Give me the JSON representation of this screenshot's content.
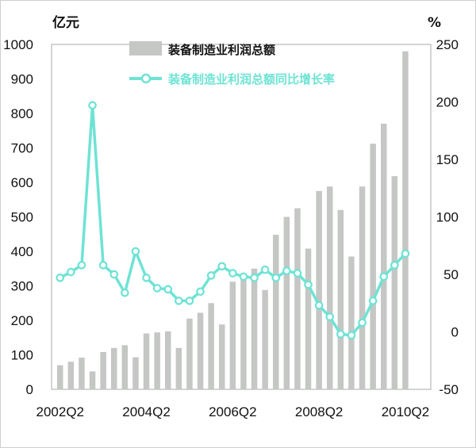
{
  "chart_data": {
    "type": "bar+line",
    "left_unit": "亿元",
    "right_unit": "%",
    "left_ticks": [
      "1000",
      "900",
      "800",
      "700",
      "600",
      "500",
      "400",
      "300",
      "200",
      "100",
      "0"
    ],
    "right_ticks": [
      "250",
      "200",
      "150",
      "100",
      "50",
      "0",
      "-50"
    ],
    "x_tick_labels": [
      "2002Q2",
      "2004Q2",
      "2006Q2",
      "2008Q2",
      "2010Q2"
    ],
    "ylim_left": [
      0,
      1000
    ],
    "ylim_right": [
      -50,
      250
    ],
    "bar_color": "#c4c7c4",
    "line_color": "#6ee3d4",
    "series": [
      {
        "name": "装备制造业利润总额",
        "axis": "left",
        "type": "bar",
        "values": [
          70,
          80,
          92,
          52,
          108,
          120,
          128,
          93,
          162,
          165,
          168,
          120,
          205,
          222,
          250,
          188,
          312,
          330,
          350,
          288,
          448,
          500,
          525,
          408,
          575,
          588,
          520,
          385,
          588,
          712,
          770,
          618,
          980
        ]
      },
      {
        "name": "装备制造业利润总额同比增长率",
        "axis": "right",
        "type": "line",
        "values": [
          47,
          52,
          58,
          197,
          58,
          50,
          34,
          70,
          47,
          38,
          37,
          27,
          27,
          35,
          49,
          57,
          51,
          48,
          47,
          54,
          47,
          53,
          51,
          41,
          23,
          13,
          -2,
          -3,
          8,
          27,
          48,
          58,
          68
        ]
      }
    ]
  }
}
